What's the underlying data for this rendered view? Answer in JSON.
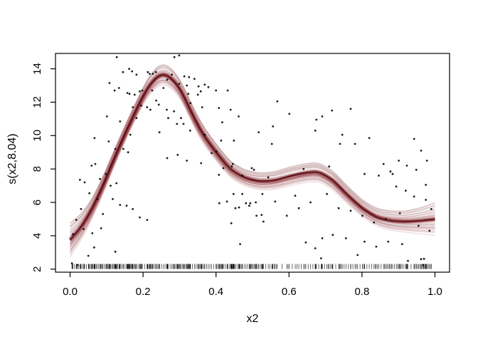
{
  "chart_data": {
    "type": "scatter",
    "title": "",
    "xlabel": "x2",
    "ylabel": "s(x2,8.04)",
    "x_ticks": [
      "0.0",
      "0.2",
      "0.4",
      "0.6",
      "0.8",
      "1.0"
    ],
    "y_ticks": [
      "2",
      "4",
      "6",
      "8",
      "10",
      "12",
      "14"
    ],
    "xlim": [
      -0.04,
      1.04
    ],
    "ylim": [
      1.82,
      14.92
    ],
    "grid": false,
    "legend": null,
    "smooth": {
      "description": "GAM smooth s(x2, edf 8.04) drawn as bundle of posterior-draw strands around mean",
      "x": [
        0.0,
        0.03,
        0.06,
        0.09,
        0.12,
        0.15,
        0.18,
        0.21,
        0.24,
        0.255,
        0.27,
        0.3,
        0.33,
        0.36,
        0.4,
        0.44,
        0.48,
        0.52,
        0.56,
        0.6,
        0.64,
        0.68,
        0.72,
        0.76,
        0.8,
        0.84,
        0.88,
        0.92,
        0.96,
        1.0
      ],
      "mean": [
        3.75,
        4.5,
        5.6,
        7.0,
        8.6,
        10.1,
        11.5,
        12.8,
        13.6,
        13.7,
        13.6,
        12.9,
        11.5,
        10.2,
        9.0,
        7.95,
        7.45,
        7.25,
        7.3,
        7.55,
        7.75,
        7.85,
        7.35,
        6.45,
        5.65,
        5.1,
        4.9,
        4.85,
        4.9,
        5.0
      ],
      "half_width": [
        1.05,
        0.8,
        0.62,
        0.55,
        0.5,
        0.5,
        0.5,
        0.55,
        0.62,
        0.62,
        0.62,
        0.58,
        0.55,
        0.55,
        0.52,
        0.5,
        0.5,
        0.52,
        0.55,
        0.58,
        0.58,
        0.58,
        0.58,
        0.55,
        0.52,
        0.55,
        0.6,
        0.65,
        0.8,
        1.0
      ]
    },
    "points": [
      [
        0.005,
        2.35
      ],
      [
        0.008,
        4.1
      ],
      [
        0.017,
        4.95
      ],
      [
        0.02,
        2.25
      ],
      [
        0.027,
        7.35
      ],
      [
        0.03,
        5.6
      ],
      [
        0.037,
        4.4
      ],
      [
        0.04,
        7.2
      ],
      [
        0.05,
        2.8
      ],
      [
        0.053,
        6.55
      ],
      [
        0.059,
        8.2
      ],
      [
        0.061,
        4.15
      ],
      [
        0.066,
        3.3
      ],
      [
        0.067,
        9.85
      ],
      [
        0.069,
        8.3
      ],
      [
        0.075,
        6.2
      ],
      [
        0.082,
        7.4
      ],
      [
        0.085,
        4.45
      ],
      [
        0.09,
        5.3
      ],
      [
        0.098,
        7.7
      ],
      [
        0.101,
        11.15
      ],
      [
        0.106,
        9.65
      ],
      [
        0.108,
        13.15
      ],
      [
        0.111,
        7.0
      ],
      [
        0.117,
        6.2
      ],
      [
        0.122,
        12.7
      ],
      [
        0.124,
        9.2
      ],
      [
        0.124,
        3.05
      ],
      [
        0.127,
        7.15
      ],
      [
        0.128,
        14.7
      ],
      [
        0.134,
        12.85
      ],
      [
        0.137,
        10.85
      ],
      [
        0.137,
        5.85
      ],
      [
        0.145,
        13.8
      ],
      [
        0.146,
        9.2
      ],
      [
        0.155,
        5.8
      ],
      [
        0.157,
        12.55
      ],
      [
        0.159,
        9.0
      ],
      [
        0.162,
        14.0
      ],
      [
        0.163,
        12.5
      ],
      [
        0.165,
        10.05
      ],
      [
        0.17,
        13.85
      ],
      [
        0.172,
        11.7
      ],
      [
        0.172,
        5.6
      ],
      [
        0.177,
        12.45
      ],
      [
        0.182,
        13.65
      ],
      [
        0.182,
        11.05
      ],
      [
        0.191,
        12.65
      ],
      [
        0.191,
        5.1
      ],
      [
        0.195,
        11.8
      ],
      [
        0.198,
        12.7
      ],
      [
        0.211,
        11.7
      ],
      [
        0.211,
        4.95
      ],
      [
        0.213,
        13.8
      ],
      [
        0.218,
        13.7
      ],
      [
        0.22,
        11.55
      ],
      [
        0.225,
        12.7
      ],
      [
        0.227,
        13.7
      ],
      [
        0.235,
        13.8
      ],
      [
        0.236,
        12.1
      ],
      [
        0.243,
        11.85
      ],
      [
        0.245,
        10.2
      ],
      [
        0.256,
        12.85
      ],
      [
        0.265,
        11.55
      ],
      [
        0.266,
        13.35
      ],
      [
        0.266,
        8.65
      ],
      [
        0.269,
        11.05
      ],
      [
        0.279,
        13.65
      ],
      [
        0.285,
        11.45
      ],
      [
        0.286,
        14.7
      ],
      [
        0.293,
        10.7
      ],
      [
        0.295,
        8.85
      ],
      [
        0.299,
        14.8
      ],
      [
        0.299,
        13.1
      ],
      [
        0.304,
        11.05
      ],
      [
        0.311,
        10.7
      ],
      [
        0.313,
        13.55
      ],
      [
        0.32,
        13.0
      ],
      [
        0.32,
        8.5
      ],
      [
        0.324,
        12.5
      ],
      [
        0.326,
        13.5
      ],
      [
        0.329,
        10.3
      ],
      [
        0.33,
        11.95
      ],
      [
        0.341,
        13.4
      ],
      [
        0.35,
        12.45
      ],
      [
        0.352,
        12.95
      ],
      [
        0.358,
        12.65
      ],
      [
        0.359,
        8.35
      ],
      [
        0.362,
        11.7
      ],
      [
        0.369,
        13.05
      ],
      [
        0.369,
        10.05
      ],
      [
        0.379,
        12.9
      ],
      [
        0.388,
        8.95
      ],
      [
        0.4,
        12.7
      ],
      [
        0.401,
        9.05
      ],
      [
        0.408,
        11.65
      ],
      [
        0.408,
        7.65
      ],
      [
        0.409,
        5.95
      ],
      [
        0.414,
        9.7
      ],
      [
        0.417,
        10.8
      ],
      [
        0.42,
        8.05
      ],
      [
        0.43,
        6.05
      ],
      [
        0.432,
        12.7
      ],
      [
        0.44,
        11.55
      ],
      [
        0.442,
        4.75
      ],
      [
        0.443,
        8.15
      ],
      [
        0.446,
        8.3
      ],
      [
        0.448,
        6.5
      ],
      [
        0.449,
        9.7
      ],
      [
        0.453,
        5.65
      ],
      [
        0.462,
        11.15
      ],
      [
        0.463,
        5.7
      ],
      [
        0.466,
        3.5
      ],
      [
        0.472,
        7.6
      ],
      [
        0.472,
        6.5
      ],
      [
        0.482,
        5.95
      ],
      [
        0.491,
        5.8
      ],
      [
        0.494,
        5.95
      ],
      [
        0.498,
        8.05
      ],
      [
        0.504,
        7.95
      ],
      [
        0.509,
        6.0
      ],
      [
        0.511,
        5.2
      ],
      [
        0.517,
        10.2
      ],
      [
        0.525,
        5.25
      ],
      [
        0.527,
        6.5
      ],
      [
        0.53,
        4.85
      ],
      [
        0.543,
        7.5
      ],
      [
        0.553,
        9.5
      ],
      [
        0.556,
        10.55
      ],
      [
        0.562,
        6.05
      ],
      [
        0.568,
        12.05
      ],
      [
        0.594,
        5.2
      ],
      [
        0.601,
        11.3
      ],
      [
        0.617,
        6.4
      ],
      [
        0.627,
        5.65
      ],
      [
        0.64,
        8.0
      ],
      [
        0.646,
        3.6
      ],
      [
        0.659,
        6.0
      ],
      [
        0.672,
        10.3
      ],
      [
        0.672,
        3.25
      ],
      [
        0.675,
        10.95
      ],
      [
        0.688,
        2.65
      ],
      [
        0.691,
        11.15
      ],
      [
        0.691,
        3.85
      ],
      [
        0.704,
        6.5
      ],
      [
        0.71,
        8.15
      ],
      [
        0.718,
        11.5
      ],
      [
        0.72,
        4.05
      ],
      [
        0.736,
        5.65
      ],
      [
        0.74,
        9.5
      ],
      [
        0.746,
        10.05
      ],
      [
        0.756,
        3.85
      ],
      [
        0.769,
        11.6
      ],
      [
        0.769,
        5.5
      ],
      [
        0.781,
        9.5
      ],
      [
        0.788,
        2.85
      ],
      [
        0.801,
        5.2
      ],
      [
        0.807,
        7.7
      ],
      [
        0.807,
        3.65
      ],
      [
        0.82,
        9.85
      ],
      [
        0.833,
        4.8
      ],
      [
        0.839,
        3.35
      ],
      [
        0.846,
        7.6
      ],
      [
        0.859,
        8.3
      ],
      [
        0.865,
        5.0
      ],
      [
        0.872,
        3.65
      ],
      [
        0.878,
        7.85
      ],
      [
        0.884,
        7.7
      ],
      [
        0.894,
        6.95
      ],
      [
        0.901,
        8.5
      ],
      [
        0.904,
        5.35
      ],
      [
        0.91,
        3.5
      ],
      [
        0.92,
        6.7
      ],
      [
        0.923,
        8.2
      ],
      [
        0.926,
        2.5
      ],
      [
        0.943,
        9.8
      ],
      [
        0.943,
        6.35
      ],
      [
        0.949,
        7.95
      ],
      [
        0.955,
        4.6
      ],
      [
        0.962,
        9.1
      ],
      [
        0.962,
        2.6
      ],
      [
        0.968,
        2.25
      ],
      [
        0.97,
        2.62
      ],
      [
        0.975,
        7.05
      ],
      [
        0.975,
        6.15
      ],
      [
        0.978,
        8.5
      ],
      [
        0.985,
        4.3
      ],
      [
        0.99,
        5.6
      ]
    ],
    "rug": true,
    "band": {
      "red_strands": 70,
      "gray_strands": 16,
      "strand_red": "#8b1e26",
      "strand_gray": "#555555",
      "core_mid": "#7a161d",
      "core_dark": "#4d1015"
    },
    "colors": {
      "points": "#0a0a0a",
      "axis": "#000000",
      "background": "#ffffff"
    }
  }
}
